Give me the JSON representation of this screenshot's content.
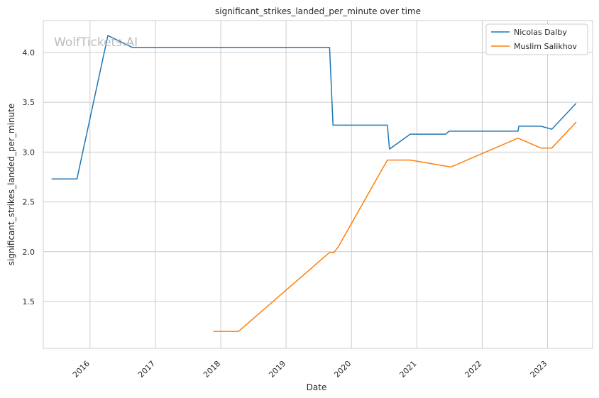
{
  "chart_data": {
    "type": "line",
    "title": "significant_strikes_landed_per_minute over time",
    "xlabel": "Date",
    "ylabel": "significant_strikes_landed_per_minute",
    "watermark": "WolfTickets.AI",
    "x_ticks": [
      "2016",
      "2017",
      "2018",
      "2019",
      "2020",
      "2021",
      "2022",
      "2023"
    ],
    "y_ticks": [
      "1.5",
      "2.0",
      "2.5",
      "3.0",
      "3.5",
      "4.0"
    ],
    "xlim": [
      "2015-04-15",
      "2023-09-10"
    ],
    "ylim": [
      1.03,
      4.32
    ],
    "grid": true,
    "legend_position": "top-right",
    "series": [
      {
        "name": "Nicolas Dalby",
        "color": "#1f77b4",
        "points": [
          [
            "2015-06-01",
            2.73
          ],
          [
            "2015-10-20",
            2.73
          ],
          [
            "2016-04-10",
            4.17
          ],
          [
            "2016-08-25",
            4.05
          ],
          [
            "2019-09-01",
            4.05
          ],
          [
            "2019-09-20",
            3.27
          ],
          [
            "2020-07-20",
            3.27
          ],
          [
            "2020-08-01",
            3.03
          ],
          [
            "2020-11-25",
            3.18
          ],
          [
            "2021-06-10",
            3.18
          ],
          [
            "2021-07-01",
            3.21
          ],
          [
            "2022-07-20",
            3.21
          ],
          [
            "2022-07-25",
            3.26
          ],
          [
            "2022-11-25",
            3.26
          ],
          [
            "2023-01-25",
            3.23
          ],
          [
            "2023-06-10",
            3.49
          ]
        ]
      },
      {
        "name": "Muslim Salikhov",
        "color": "#ff7f0e",
        "points": [
          [
            "2017-11-20",
            1.2
          ],
          [
            "2018-04-10",
            1.2
          ],
          [
            "2019-08-30",
            1.99
          ],
          [
            "2019-09-25",
            1.99
          ],
          [
            "2019-10-20",
            2.05
          ],
          [
            "2020-07-20",
            2.92
          ],
          [
            "2020-11-25",
            2.92
          ],
          [
            "2021-07-10",
            2.85
          ],
          [
            "2022-07-20",
            3.14
          ],
          [
            "2022-11-25",
            3.04
          ],
          [
            "2023-01-25",
            3.04
          ],
          [
            "2023-06-10",
            3.3
          ]
        ]
      }
    ]
  }
}
